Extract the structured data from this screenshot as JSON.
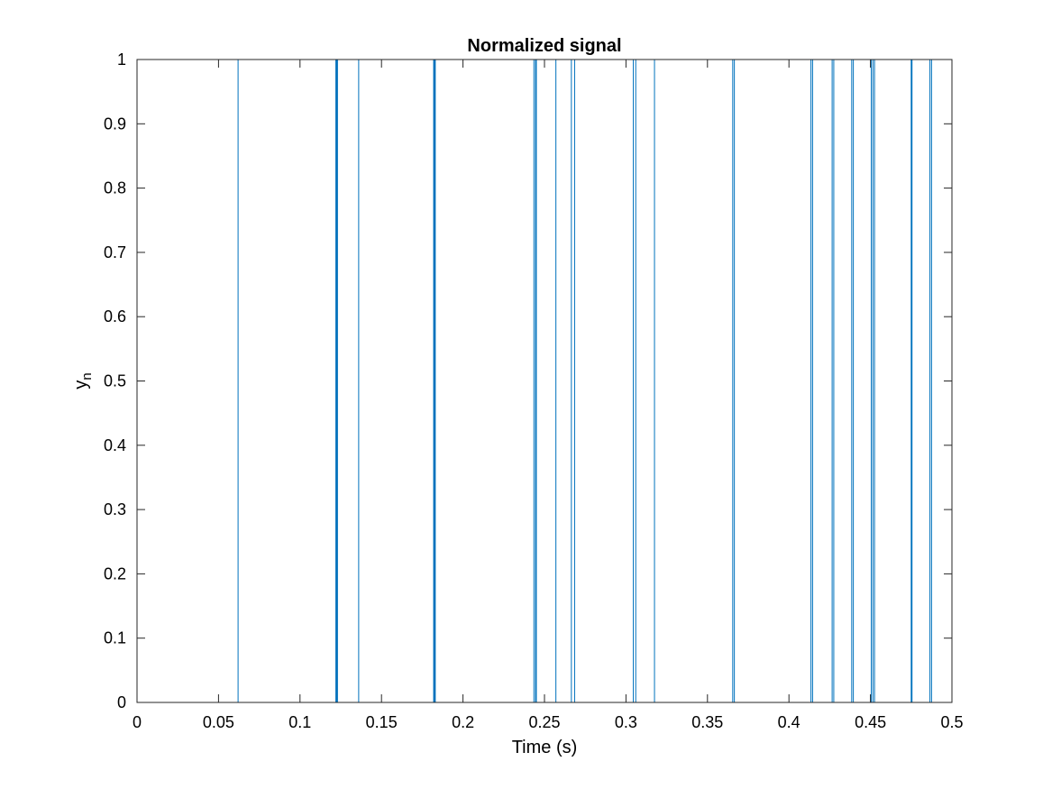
{
  "chart_data": {
    "type": "line",
    "title": "Normalized signal",
    "xlabel": "Time (s)",
    "ylabel_main": "y",
    "ylabel_sub": "n",
    "xlim": [
      0,
      0.5
    ],
    "ylim": [
      0,
      1
    ],
    "xticks": [
      0,
      0.05,
      0.1,
      0.15,
      0.2,
      0.25,
      0.3,
      0.35,
      0.4,
      0.45,
      0.5
    ],
    "xtick_labels": [
      "0",
      "0.05",
      "0.1",
      "0.15",
      "0.2",
      "0.25",
      "0.3",
      "0.35",
      "0.4",
      "0.45",
      "0.5"
    ],
    "yticks": [
      0,
      0.1,
      0.2,
      0.3,
      0.4,
      0.5,
      0.6,
      0.7,
      0.8,
      0.9,
      1
    ],
    "ytick_labels": [
      "0",
      "0.1",
      "0.2",
      "0.3",
      "0.4",
      "0.5",
      "0.6",
      "0.7",
      "0.8",
      "0.9",
      "1"
    ],
    "grid": false,
    "line_color": "#0072BD",
    "series": [
      {
        "x": [
          0,
          0,
          0.062,
          0.062,
          0.122,
          0.122,
          0.123,
          0.123,
          0.1225,
          0.1225,
          0.136,
          0.136,
          0.182,
          0.182,
          0.183,
          0.183,
          0.1825,
          0.1825,
          0.2435,
          0.2435,
          0.2445,
          0.2445,
          0.245,
          0.245,
          0.257,
          0.257,
          0.2665,
          0.2665,
          0.2685,
          0.2685,
          0.3045,
          0.3045,
          0.306,
          0.306,
          0.3175,
          0.3175,
          0.3655,
          0.3655,
          0.3665,
          0.3665,
          0.4135,
          0.4135,
          0.4145,
          0.4145,
          0.4265,
          0.4265,
          0.4275,
          0.4275,
          0.4385,
          0.4385,
          0.4395,
          0.4395,
          0.4505,
          0.4505,
          0.4515,
          0.4515,
          0.4525,
          0.4525,
          0.475,
          0.475,
          0.4755,
          0.4755,
          0.4865,
          0.4865,
          0.4875,
          0.4875,
          0.5
        ],
        "y": [
          1,
          0,
          0,
          1,
          1,
          0,
          0,
          1,
          1,
          0,
          0,
          1,
          1,
          0,
          0,
          1,
          1,
          0,
          0,
          1,
          1,
          0,
          0,
          1,
          1,
          0,
          0,
          1,
          1,
          0,
          0,
          1,
          1,
          0,
          0,
          1,
          1,
          0,
          0,
          1,
          1,
          0,
          0,
          1,
          1,
          0,
          0,
          1,
          1,
          0,
          0,
          1,
          1,
          0,
          0,
          1,
          1,
          0,
          0,
          1,
          1,
          0,
          0,
          1,
          1,
          0,
          0
        ]
      }
    ]
  }
}
